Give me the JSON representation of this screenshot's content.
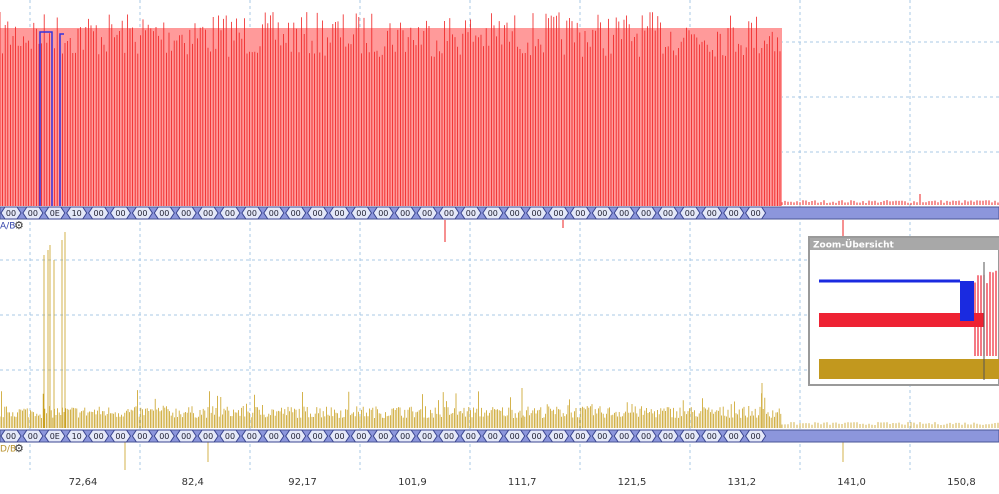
{
  "top_bus": {
    "label": "A/B",
    "bytes": [
      "00",
      "00",
      "0E",
      "10",
      "00",
      "00",
      "00",
      "00",
      "00",
      "00",
      "00",
      "00",
      "00",
      "00",
      "00",
      "00",
      "00",
      "00",
      "00",
      "00",
      "00",
      "00",
      "00",
      "00",
      "00",
      "00",
      "00",
      "00",
      "00",
      "00",
      "00",
      "00",
      "00",
      "00",
      "00"
    ]
  },
  "bottom_bus": {
    "label": "D/B",
    "bytes": [
      "00",
      "00",
      "0E",
      "10",
      "00",
      "00",
      "00",
      "00",
      "00",
      "00",
      "00",
      "00",
      "00",
      "00",
      "00",
      "00",
      "00",
      "00",
      "00",
      "00",
      "00",
      "00",
      "00",
      "00",
      "00",
      "00",
      "00",
      "00",
      "00",
      "00",
      "00",
      "00",
      "00",
      "00",
      "00"
    ]
  },
  "x_axis": {
    "ticks": [
      "72,64",
      "82,4",
      "92,17",
      "101,9",
      "111,7",
      "121,5",
      "131,2",
      "141,0",
      "150,8"
    ]
  },
  "zoom_overview": {
    "title": "Zoom-Übersicht"
  }
}
